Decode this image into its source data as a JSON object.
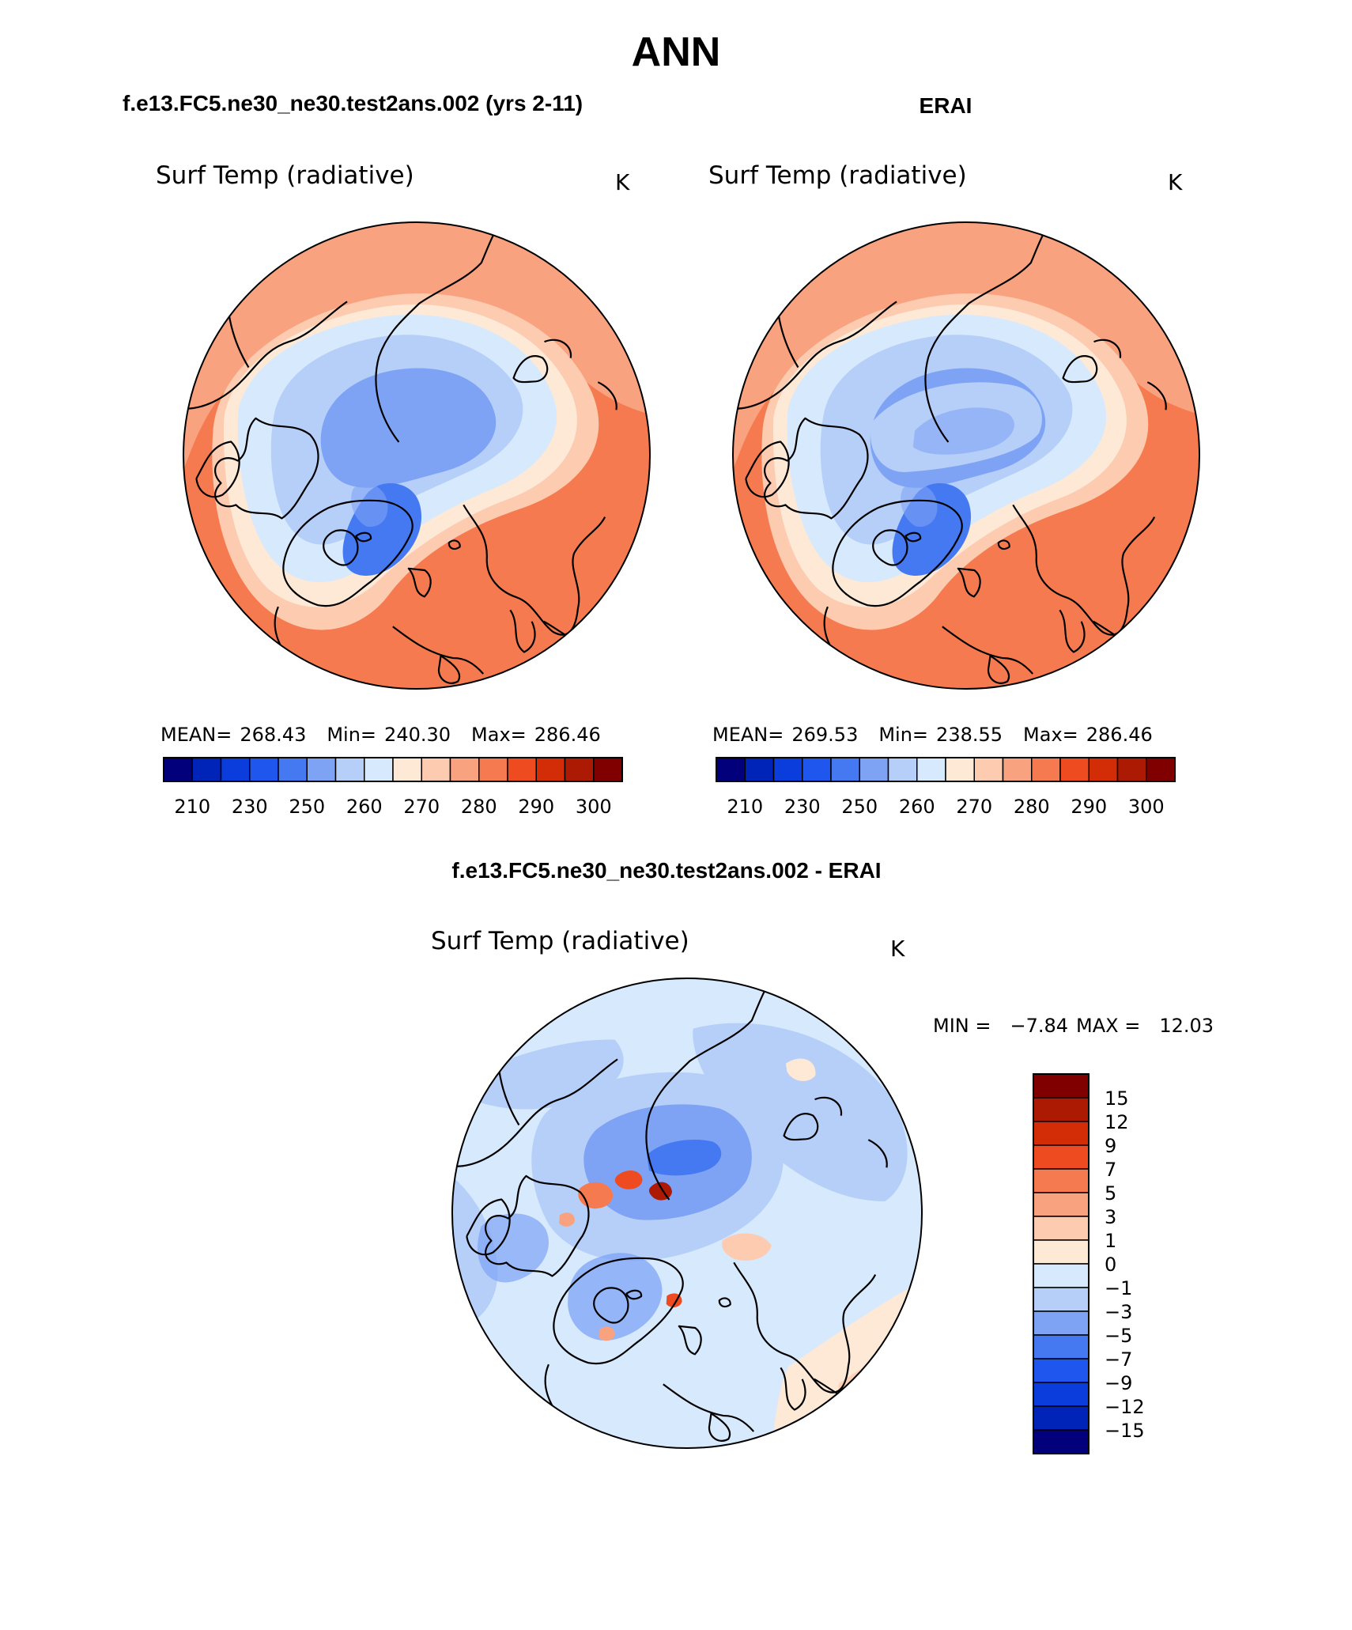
{
  "page_title": "ANN",
  "chart_data": [
    {
      "type": "heatmap",
      "projection": "north-polar-stereographic",
      "case_title": "f.e13.FC5.ne30_ne30.test2ans.002 (yrs 2-11)",
      "title": "Surf Temp (radiative)",
      "units": "K",
      "stats": {
        "mean_label": "MEAN=",
        "mean": "268.43",
        "min_label": "Min=",
        "min": "240.30",
        "max_label": "Max=",
        "max": "286.46"
      },
      "colorbar": {
        "orientation": "horizontal",
        "colors": [
          "#02007a",
          "#0024b8",
          "#0a3ddc",
          "#1f56ee",
          "#4479f2",
          "#7ea3f5",
          "#b6cff8",
          "#d7e9fd",
          "#fde9d6",
          "#fccbb0",
          "#f9a280",
          "#f67a4f",
          "#ee4c20",
          "#d32d08",
          "#ad1a04",
          "#800000"
        ],
        "tick_labels": [
          "210",
          "230",
          "250",
          "260",
          "270",
          "280",
          "290",
          "300"
        ]
      }
    },
    {
      "type": "heatmap",
      "projection": "north-polar-stereographic",
      "case_title": "ERAI",
      "title": "Surf Temp (radiative)",
      "units": "K",
      "stats": {
        "mean_label": "MEAN=",
        "mean": "269.53",
        "min_label": "Min=",
        "min": "238.55",
        "max_label": "Max=",
        "max": "286.46"
      },
      "colorbar": {
        "orientation": "horizontal",
        "colors": [
          "#02007a",
          "#0024b8",
          "#0a3ddc",
          "#1f56ee",
          "#4479f2",
          "#7ea3f5",
          "#b6cff8",
          "#d7e9fd",
          "#fde9d6",
          "#fccbb0",
          "#f9a280",
          "#f67a4f",
          "#ee4c20",
          "#d32d08",
          "#ad1a04",
          "#800000"
        ],
        "tick_labels": [
          "210",
          "230",
          "250",
          "260",
          "270",
          "280",
          "290",
          "300"
        ]
      }
    },
    {
      "type": "heatmap",
      "projection": "north-polar-stereographic",
      "case_title": "f.e13.FC5.ne30_ne30.test2ans.002 - ERAI",
      "title": "Surf Temp (radiative)",
      "units": "K",
      "stats": {
        "min_label": "MIN =",
        "min": "−7.84",
        "max_label": "MAX =",
        "max": "12.03"
      },
      "colorbar": {
        "orientation": "vertical",
        "colors": [
          "#800000",
          "#ad1a04",
          "#d32d08",
          "#ee4c20",
          "#f67a4f",
          "#f9a280",
          "#fccbb0",
          "#fde9d6",
          "#d7e9fd",
          "#b6cff8",
          "#7ea3f5",
          "#4479f2",
          "#1f56ee",
          "#0a3ddc",
          "#0024b8",
          "#02007a"
        ],
        "tick_labels": [
          "15",
          "12",
          "9",
          "7",
          "5",
          "3",
          "1",
          "0",
          "−1",
          "−3",
          "−5",
          "−7",
          "−9",
          "−12",
          "−15"
        ]
      }
    }
  ]
}
